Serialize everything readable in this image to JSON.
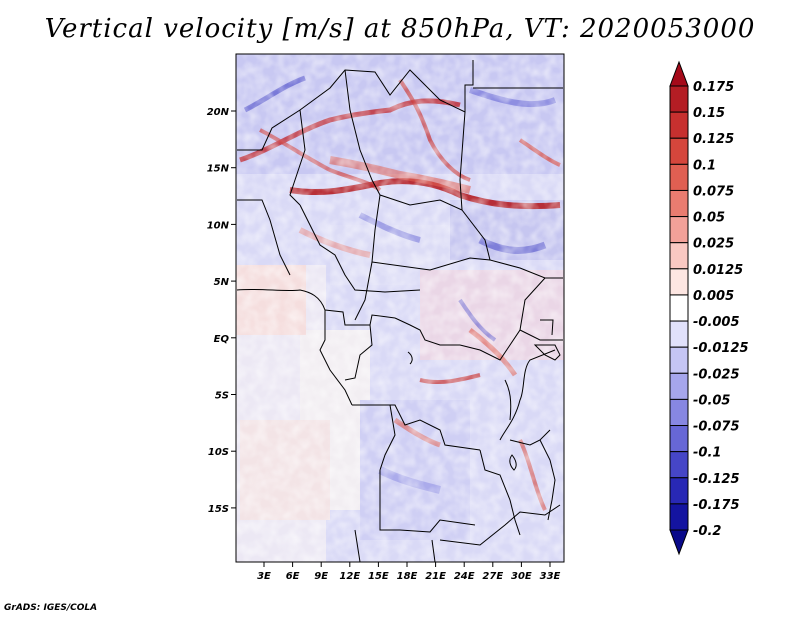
{
  "title": "Vertical velocity [m/s] at 850hPa, VT: 2020053000",
  "footer": "GrADS: IGES/COLA",
  "map": {
    "lat_labels": [
      "20N",
      "15N",
      "10N",
      "5N",
      "EQ",
      "5S",
      "10S",
      "15S"
    ],
    "lon_labels": [
      "3E",
      "6E",
      "9E",
      "12E",
      "15E",
      "18E",
      "21E",
      "24E",
      "27E",
      "30E",
      "33E"
    ]
  },
  "colorbar": {
    "labels": [
      "0.175",
      "0.15",
      "0.125",
      "0.1",
      "0.075",
      "0.05",
      "0.025",
      "0.0125",
      "0.005",
      "-0.005",
      "-0.0125",
      "-0.025",
      "-0.05",
      "-0.075",
      "-0.1",
      "-0.125",
      "-0.175",
      "-0.2"
    ],
    "colors": [
      "#a50a1a",
      "#b41d24",
      "#c7302f",
      "#d5463c",
      "#e05f52",
      "#ea7c70",
      "#f3a199",
      "#f9c8c2",
      "#fde6e2",
      "#ffffff",
      "#e1e1fb",
      "#c5c5f4",
      "#a6a6ec",
      "#8787e2",
      "#6767d6",
      "#4646c7",
      "#2828b5",
      "#1414a0",
      "#0a0a8a"
    ]
  }
}
